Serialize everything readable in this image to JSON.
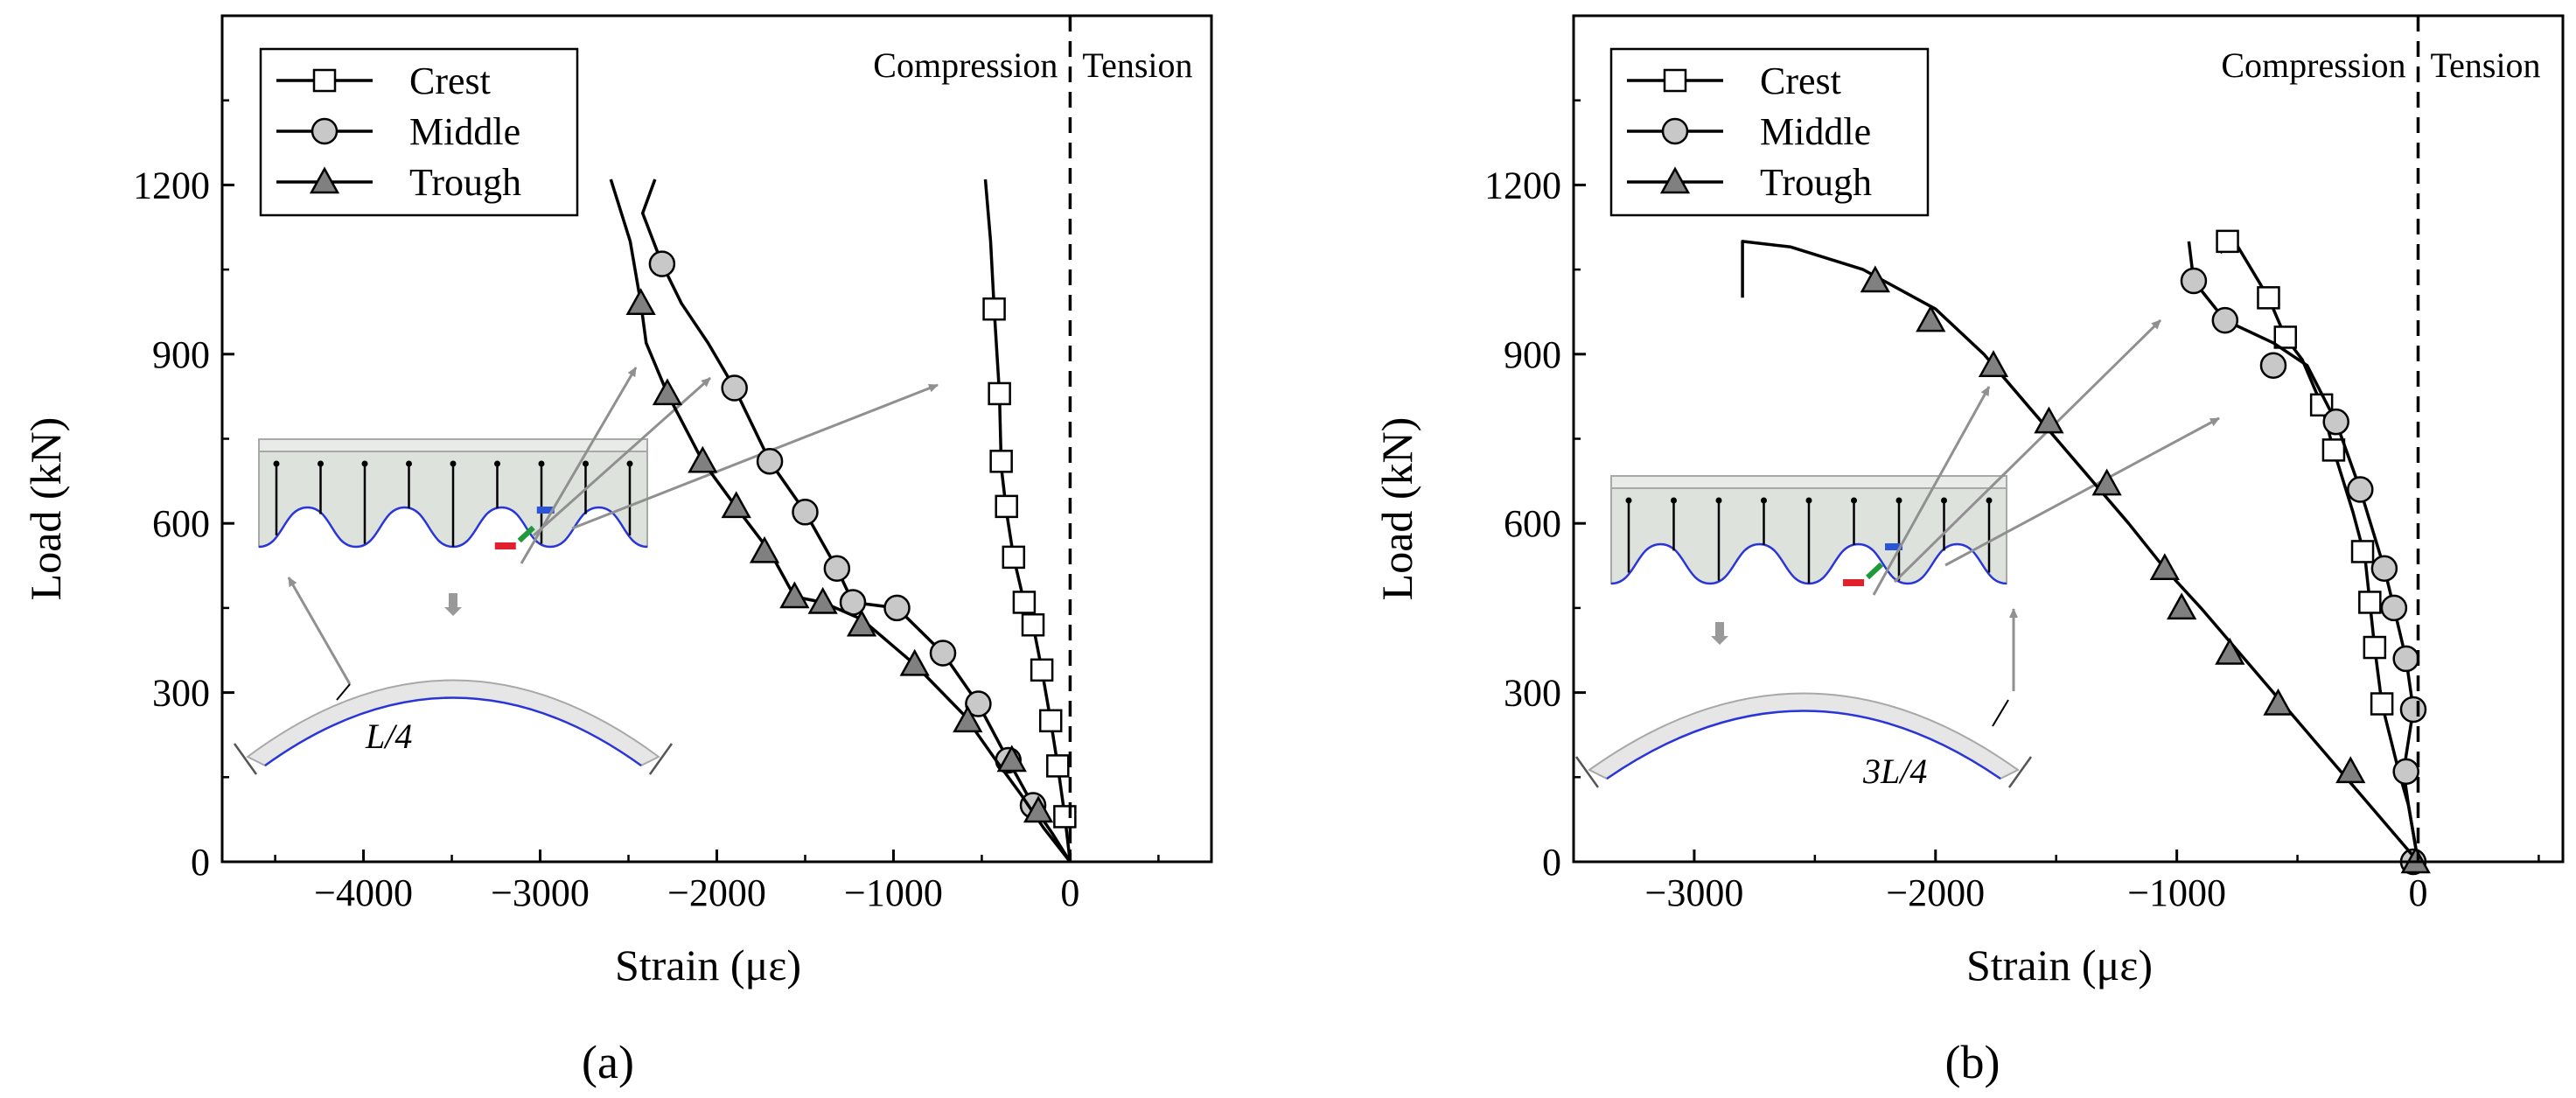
{
  "colors": {
    "axis": "#000000",
    "curve": "#000000",
    "marker_fill_square": "#ffffff",
    "marker_fill_circle": "#c8c8c8",
    "marker_fill_triangle": "#808080",
    "annotation_arrow": "#909090",
    "inset_fill": "#dde2dd",
    "inset_edge": "#a8a8a8",
    "trough_line": "#2a35d8",
    "gauge_red": "#e0202a",
    "gauge_green": "#1f9a3a",
    "gauge_blue": "#2a55d8"
  },
  "chart_data": [
    {
      "panel_label": "(a)",
      "type": "line",
      "xlabel": "Strain (με)",
      "ylabel": "Load (kN)",
      "xlim": [
        -4800,
        800
      ],
      "ylim": [
        0,
        1500
      ],
      "xticks": [
        -4000,
        -3000,
        -2000,
        -1000,
        0
      ],
      "yticks": [
        0,
        300,
        600,
        900,
        1200
      ],
      "xtick_labels": [
        "−4000",
        "−3000",
        "−2000",
        "−1000",
        "0"
      ],
      "ytick_labels": [
        "0",
        "300",
        "600",
        "900",
        "1200"
      ],
      "zero_line_x": 0,
      "region_labels": {
        "left": "Compression",
        "right": "Tension"
      },
      "legend_position": "top-left",
      "inset_label": "L/4",
      "series": [
        {
          "name": "Crest",
          "marker": "square",
          "line": [
            [
              0,
              0
            ],
            [
              -30,
              80
            ],
            [
              -70,
              170
            ],
            [
              -110,
              250
            ],
            [
              -160,
              340
            ],
            [
              -210,
              420
            ],
            [
              -260,
              460
            ],
            [
              -320,
              540
            ],
            [
              -360,
              620
            ],
            [
              -390,
              700
            ],
            [
              -400,
              830
            ],
            [
              -430,
              980
            ],
            [
              -450,
              1100
            ],
            [
              -480,
              1210
            ]
          ],
          "markers": [
            [
              -30,
              80
            ],
            [
              -70,
              170
            ],
            [
              -110,
              250
            ],
            [
              -160,
              340
            ],
            [
              -210,
              420
            ],
            [
              -260,
              460
            ],
            [
              -320,
              540
            ],
            [
              -360,
              630
            ],
            [
              -390,
              710
            ],
            [
              -400,
              830
            ],
            [
              -430,
              980
            ]
          ]
        },
        {
          "name": "Middle",
          "marker": "circle",
          "line": [
            [
              0,
              0
            ],
            [
              -100,
              50
            ],
            [
              -210,
              100
            ],
            [
              -350,
              180
            ],
            [
              -520,
              280
            ],
            [
              -720,
              370
            ],
            [
              -980,
              450
            ],
            [
              -1230,
              460
            ],
            [
              -1320,
              520
            ],
            [
              -1500,
              620
            ],
            [
              -1700,
              710
            ],
            [
              -1900,
              840
            ],
            [
              -2050,
              920
            ],
            [
              -2200,
              990
            ],
            [
              -2310,
              1060
            ],
            [
              -2420,
              1150
            ],
            [
              -2350,
              1210
            ]
          ],
          "markers": [
            [
              -210,
              100
            ],
            [
              -350,
              180
            ],
            [
              -520,
              280
            ],
            [
              -720,
              370
            ],
            [
              -980,
              450
            ],
            [
              -1230,
              460
            ],
            [
              -1320,
              520
            ],
            [
              -1500,
              620
            ],
            [
              -1700,
              710
            ],
            [
              -1900,
              840
            ],
            [
              -2310,
              1060
            ]
          ]
        },
        {
          "name": "Trough",
          "marker": "triangle",
          "line": [
            [
              0,
              0
            ],
            [
              -150,
              60
            ],
            [
              -280,
              120
            ],
            [
              -420,
              180
            ],
            [
              -600,
              260
            ],
            [
              -880,
              350
            ],
            [
              -1180,
              430
            ],
            [
              -1400,
              460
            ],
            [
              -1560,
              470
            ],
            [
              -1700,
              550
            ],
            [
              -1870,
              620
            ],
            [
              -2080,
              710
            ],
            [
              -2280,
              830
            ],
            [
              -2400,
              920
            ],
            [
              -2430,
              990
            ],
            [
              -2490,
              1100
            ],
            [
              -2600,
              1210
            ]
          ],
          "markers": [
            [
              -180,
              90
            ],
            [
              -330,
              180
            ],
            [
              -580,
              250
            ],
            [
              -880,
              350
            ],
            [
              -1180,
              420
            ],
            [
              -1400,
              460
            ],
            [
              -1560,
              470
            ],
            [
              -1730,
              550
            ],
            [
              -1890,
              630
            ],
            [
              -2080,
              710
            ],
            [
              -2280,
              830
            ],
            [
              -2430,
              990
            ]
          ]
        }
      ]
    },
    {
      "panel_label": "(b)",
      "type": "line",
      "xlabel": "Strain (με)",
      "ylabel": "Load (kN)",
      "xlim": [
        -3500,
        600
      ],
      "ylim": [
        0,
        1500
      ],
      "xticks": [
        -3000,
        -2000,
        -1000,
        0
      ],
      "yticks": [
        0,
        300,
        600,
        900,
        1200
      ],
      "xtick_labels": [
        "−3000",
        "−2000",
        "−1000",
        "0"
      ],
      "ytick_labels": [
        "0",
        "300",
        "600",
        "900",
        "1200"
      ],
      "zero_line_x": 0,
      "region_labels": {
        "left": "Compression",
        "right": "Tension"
      },
      "legend_position": "top-left",
      "inset_label": "3L/4",
      "series": [
        {
          "name": "Crest",
          "marker": "square",
          "line": [
            [
              0,
              0
            ],
            [
              -40,
              100
            ],
            [
              -80,
              160
            ],
            [
              -150,
              280
            ],
            [
              -180,
              380
            ],
            [
              -200,
              460
            ],
            [
              -220,
              540
            ],
            [
              -270,
              620
            ],
            [
              -350,
              730
            ],
            [
              -400,
              810
            ],
            [
              -480,
              890
            ],
            [
              -550,
              930
            ],
            [
              -620,
              1000
            ],
            [
              -760,
              1100
            ],
            [
              -820,
              1080
            ]
          ],
          "markers": [
            [
              -150,
              280
            ],
            [
              -180,
              380
            ],
            [
              -200,
              460
            ],
            [
              -230,
              550
            ],
            [
              -350,
              730
            ],
            [
              -400,
              810
            ],
            [
              -550,
              930
            ],
            [
              -620,
              1000
            ],
            [
              -790,
              1100
            ]
          ]
        },
        {
          "name": "Middle",
          "marker": "circle",
          "line": [
            [
              0,
              0
            ],
            [
              -40,
              100
            ],
            [
              -60,
              160
            ],
            [
              -20,
              270
            ],
            [
              -50,
              360
            ],
            [
              -100,
              450
            ],
            [
              -140,
              520
            ],
            [
              -240,
              660
            ],
            [
              -340,
              780
            ],
            [
              -460,
              880
            ],
            [
              -600,
              920
            ],
            [
              -800,
              960
            ],
            [
              -930,
              1030
            ],
            [
              -950,
              1100
            ]
          ],
          "markers": [
            [
              -20,
              0
            ],
            [
              -50,
              160
            ],
            [
              -20,
              270
            ],
            [
              -50,
              360
            ],
            [
              -100,
              450
            ],
            [
              -140,
              520
            ],
            [
              -240,
              660
            ],
            [
              -340,
              780
            ],
            [
              -600,
              880
            ],
            [
              -800,
              960
            ],
            [
              -930,
              1030
            ]
          ]
        },
        {
          "name": "Trough",
          "marker": "triangle",
          "line": [
            [
              0,
              0
            ],
            [
              -200,
              100
            ],
            [
              -400,
              200
            ],
            [
              -600,
              300
            ],
            [
              -800,
              400
            ],
            [
              -900,
              450
            ],
            [
              -1050,
              520
            ],
            [
              -1200,
              600
            ],
            [
              -1400,
              700
            ],
            [
              -1600,
              800
            ],
            [
              -1800,
              900
            ],
            [
              -2000,
              980
            ],
            [
              -2300,
              1050
            ],
            [
              -2600,
              1090
            ],
            [
              -2800,
              1100
            ],
            [
              -2800,
              1000
            ]
          ],
          "markers": [
            [
              -10,
              0
            ],
            [
              -280,
              160
            ],
            [
              -580,
              280
            ],
            [
              -780,
              370
            ],
            [
              -980,
              450
            ],
            [
              -1050,
              520
            ],
            [
              -1290,
              670
            ],
            [
              -1530,
              780
            ],
            [
              -1760,
              880
            ],
            [
              -2020,
              960
            ],
            [
              -2250,
              1030
            ]
          ]
        }
      ]
    }
  ]
}
